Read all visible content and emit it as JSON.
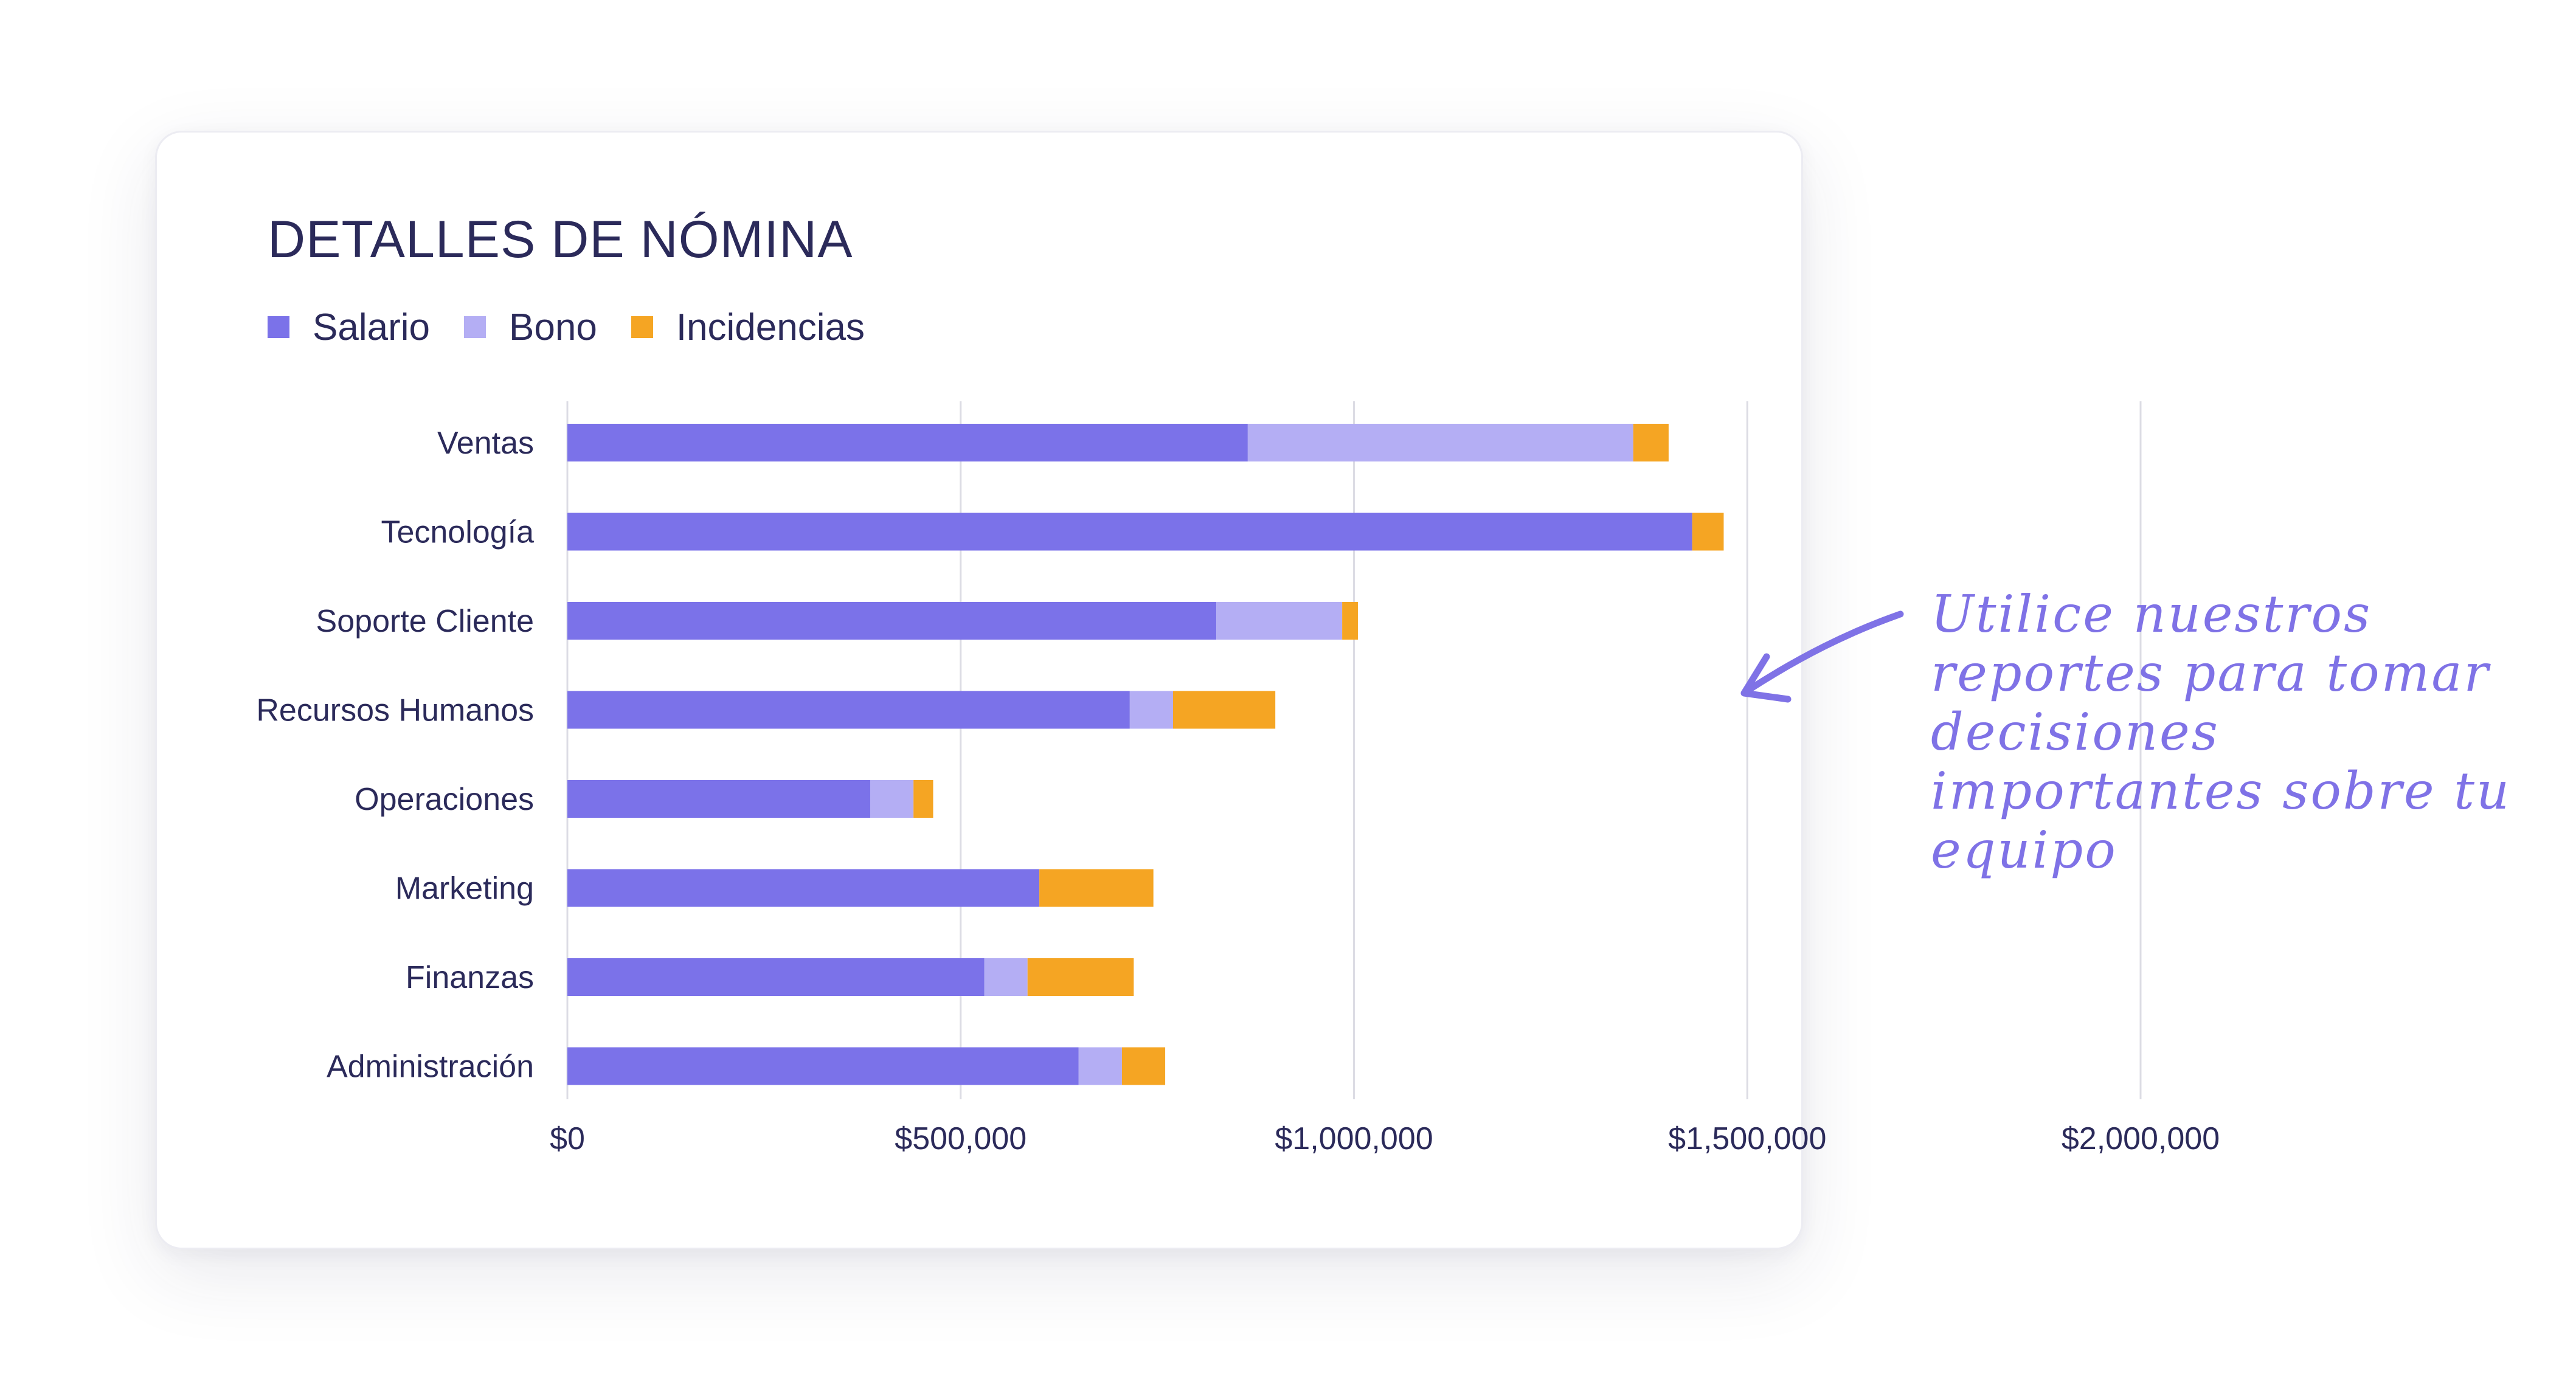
{
  "chart_data": {
    "type": "bar",
    "orientation": "horizontal",
    "stacked": true,
    "title": "DETALLES DE NÓMINA",
    "categories": [
      "Ventas",
      "Tecnología",
      "Soporte Cliente",
      "Recursos Humanos",
      "Operaciones",
      "Marketing",
      "Finanzas",
      "Administración"
    ],
    "series": [
      {
        "name": "Salario",
        "color": "#7b72e9",
        "values": [
          865000,
          1430000,
          825000,
          715000,
          385000,
          600000,
          530000,
          650000
        ]
      },
      {
        "name": "Bono",
        "color": "#b4aef4",
        "values": [
          490000,
          0,
          160000,
          55000,
          55000,
          0,
          55000,
          55000
        ]
      },
      {
        "name": "Incidencias",
        "color": "#f5a523",
        "values": [
          45000,
          40000,
          20000,
          130000,
          25000,
          145000,
          135000,
          55000
        ]
      }
    ],
    "xlim": [
      0,
      2000000
    ],
    "x_ticks": [
      0,
      500000,
      1000000,
      1500000,
      2000000
    ],
    "x_tick_labels": [
      "$0",
      "$500,000",
      "$1,000,000",
      "$1,500,000",
      "$2,000,000"
    ],
    "grid": true,
    "legend_position": "top-left"
  },
  "annotation": {
    "text": "Utilice nuestros reportes para tomar decisiones importantes sobre tu equipo",
    "color": "#7f72e6"
  },
  "colors": {
    "title": "#2b2a5a",
    "grid": "#dcdce4"
  }
}
